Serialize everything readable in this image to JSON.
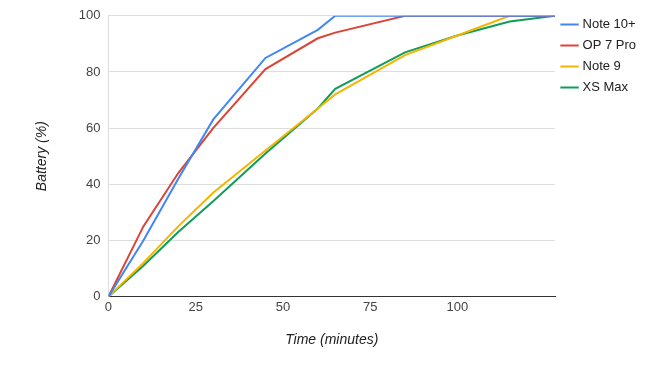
{
  "chart_data": {
    "type": "line",
    "x_label": "Time (minutes)",
    "y_label": "Battery (%)",
    "xlim": [
      0,
      128
    ],
    "xticks": [
      0,
      25,
      50,
      75,
      100
    ],
    "ylim": [
      0,
      100
    ],
    "yticks": [
      0,
      20,
      40,
      60,
      80,
      100
    ],
    "grid": "y",
    "legend": "top-right",
    "series": [
      {
        "name": "Note 10+",
        "color": "#4285f4",
        "x": [
          0,
          10,
          20,
          30,
          45,
          60,
          65,
          128
        ],
        "values": [
          0,
          20,
          42,
          63,
          85,
          95,
          100,
          100
        ]
      },
      {
        "name": "OP 7 Pro",
        "color": "#db4437",
        "x": [
          0,
          10,
          20,
          30,
          45,
          60,
          65,
          85,
          128
        ],
        "values": [
          0,
          25,
          44,
          60,
          81,
          92,
          94,
          100,
          100
        ]
      },
      {
        "name": "Note 9",
        "color": "#f4b400",
        "x": [
          0,
          10,
          20,
          30,
          45,
          60,
          65,
          85,
          100,
          115,
          128
        ],
        "values": [
          0,
          12,
          25,
          37,
          52,
          67,
          72,
          86,
          93,
          100,
          100
        ]
      },
      {
        "name": "XS Max",
        "color": "#0f9d58",
        "x": [
          0,
          10,
          20,
          30,
          45,
          60,
          65,
          85,
          100,
          115,
          128
        ],
        "values": [
          0,
          11,
          23,
          34,
          51,
          67,
          74,
          87,
          93,
          98,
          100
        ]
      }
    ]
  }
}
